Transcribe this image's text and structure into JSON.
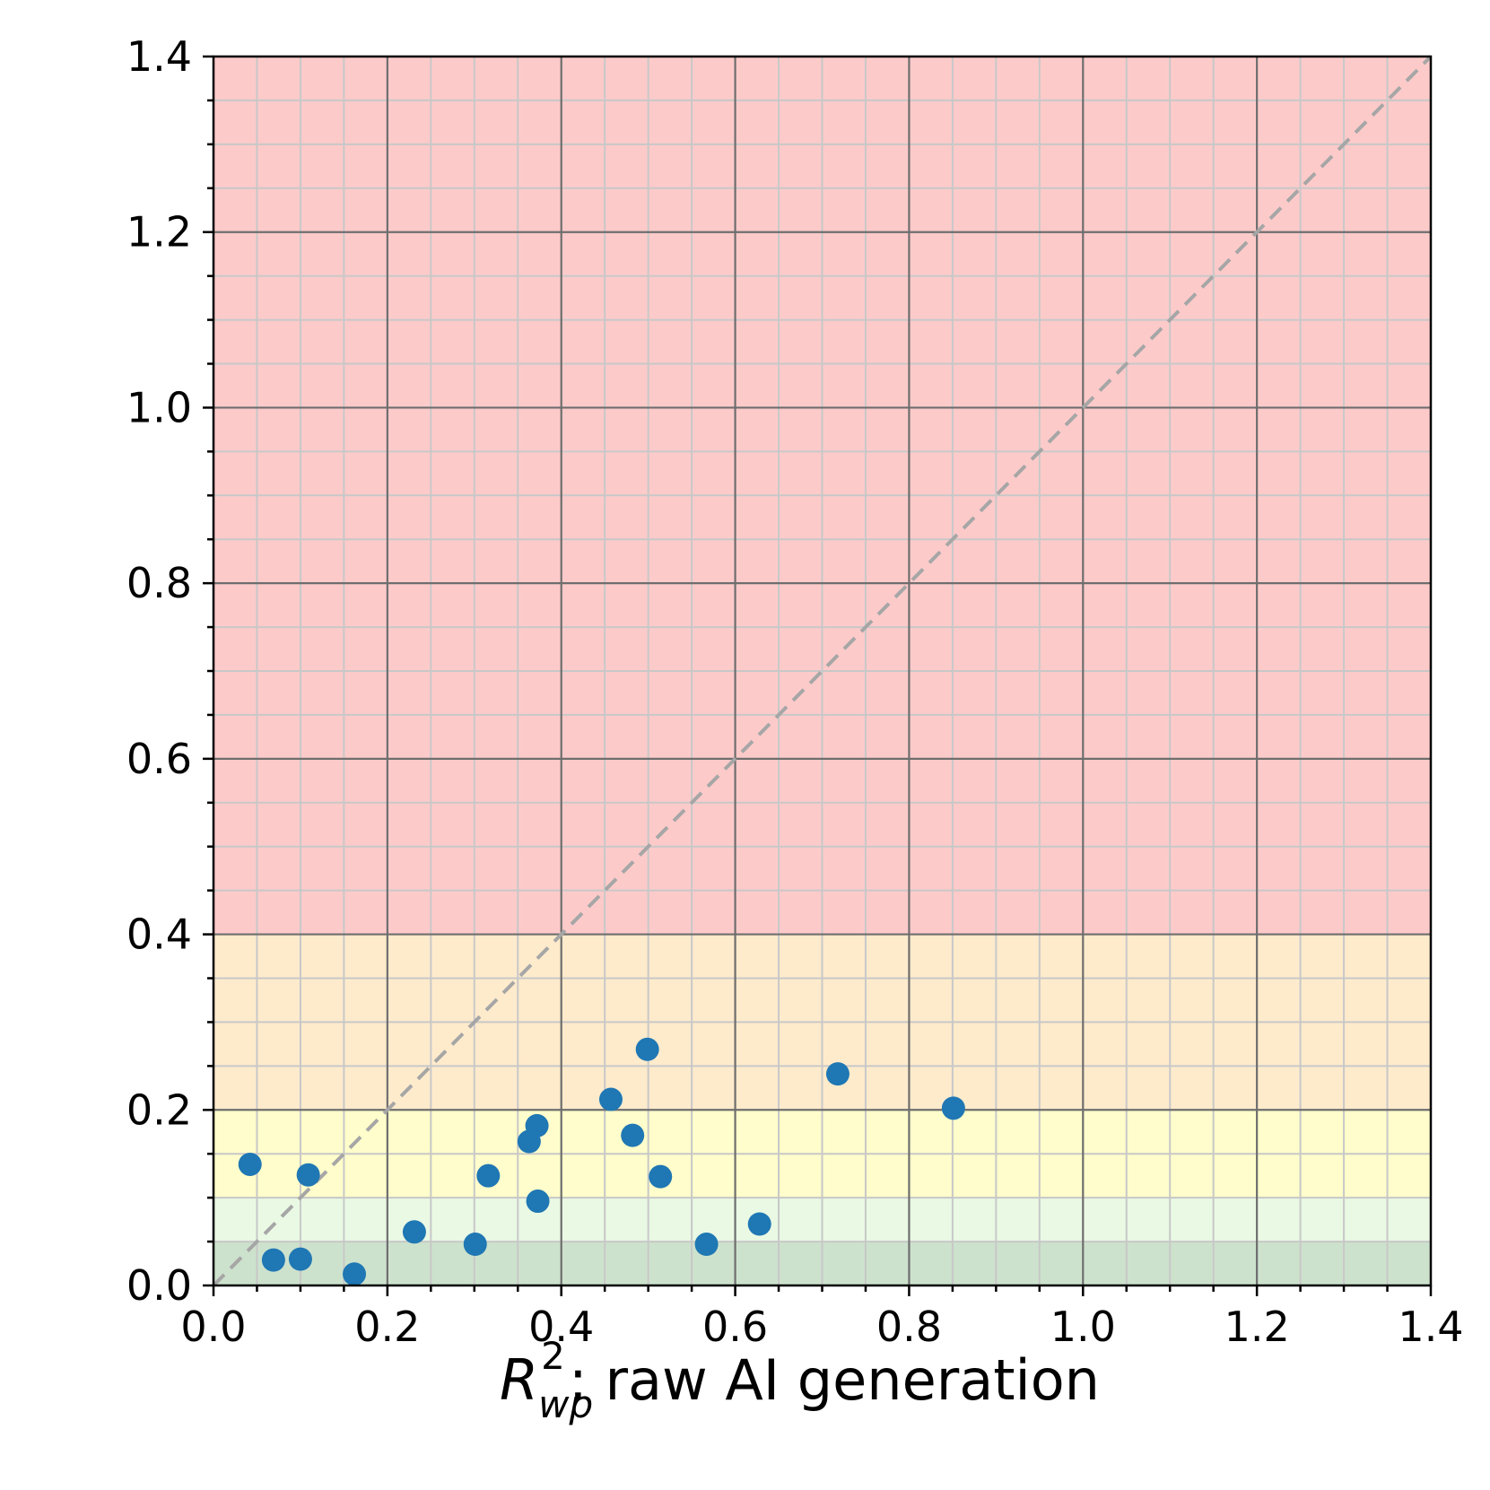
{
  "chart_data": {
    "type": "scatter",
    "xlabel": {
      "symbol": "R",
      "subscript": "wp",
      "superscript": "2",
      "text": ": raw AI generation"
    },
    "ylabel": "",
    "xlim": [
      0,
      1.4
    ],
    "ylim": [
      0,
      1.4
    ],
    "x_major_ticks": [
      "0.0",
      "0.2",
      "0.4",
      "0.6",
      "0.8",
      "1.0",
      "1.2",
      "1.4"
    ],
    "y_major_ticks": [
      "0.0",
      "0.2",
      "0.4",
      "0.6",
      "0.8",
      "1.0",
      "1.2",
      "1.4"
    ],
    "minor_tick_step": 0.05,
    "grid": true,
    "reference_line": {
      "style": "dashed",
      "color": "#a6a6a6",
      "from": [
        0,
        0
      ],
      "to": [
        1.4,
        1.4
      ]
    },
    "bands": [
      {
        "y0": 0.0,
        "y1": 0.05,
        "color": "#cde2cd"
      },
      {
        "y0": 0.05,
        "y1": 0.1,
        "color": "#e9f9e4"
      },
      {
        "y0": 0.1,
        "y1": 0.2,
        "color": "#fefdcb"
      },
      {
        "y0": 0.2,
        "y1": 0.4,
        "color": "#feebcc"
      },
      {
        "y0": 0.4,
        "y1": 1.4,
        "color": "#fdcaca"
      }
    ],
    "marker_color": "#1f77b4",
    "points": [
      {
        "x": 0.042,
        "y": 0.138
      },
      {
        "x": 0.069,
        "y": 0.029
      },
      {
        "x": 0.1,
        "y": 0.03
      },
      {
        "x": 0.109,
        "y": 0.126
      },
      {
        "x": 0.162,
        "y": 0.013
      },
      {
        "x": 0.231,
        "y": 0.061
      },
      {
        "x": 0.301,
        "y": 0.047
      },
      {
        "x": 0.316,
        "y": 0.125
      },
      {
        "x": 0.363,
        "y": 0.164
      },
      {
        "x": 0.372,
        "y": 0.182
      },
      {
        "x": 0.373,
        "y": 0.096
      },
      {
        "x": 0.457,
        "y": 0.212
      },
      {
        "x": 0.482,
        "y": 0.171
      },
      {
        "x": 0.499,
        "y": 0.269
      },
      {
        "x": 0.514,
        "y": 0.124
      },
      {
        "x": 0.567,
        "y": 0.047
      },
      {
        "x": 0.628,
        "y": 0.07
      },
      {
        "x": 0.718,
        "y": 0.241
      },
      {
        "x": 0.851,
        "y": 0.202
      }
    ]
  }
}
